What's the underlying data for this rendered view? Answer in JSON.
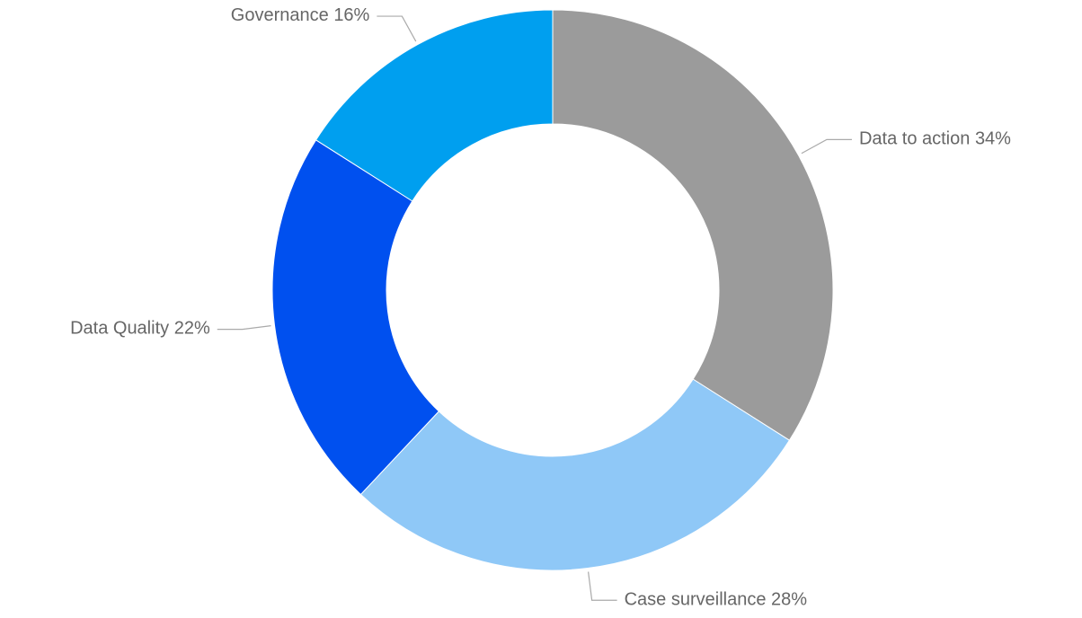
{
  "chart_data": {
    "type": "donut",
    "categories": [
      "Data to action",
      "Case surveillance",
      "Data Quality",
      "Governance"
    ],
    "values": [
      34,
      28,
      22,
      16
    ],
    "value_labels": [
      "34%",
      "28%",
      "22%",
      "16%"
    ],
    "colors": [
      "#9b9b9b",
      "#8fc8f7",
      "#0050ef",
      "#009fef"
    ]
  }
}
